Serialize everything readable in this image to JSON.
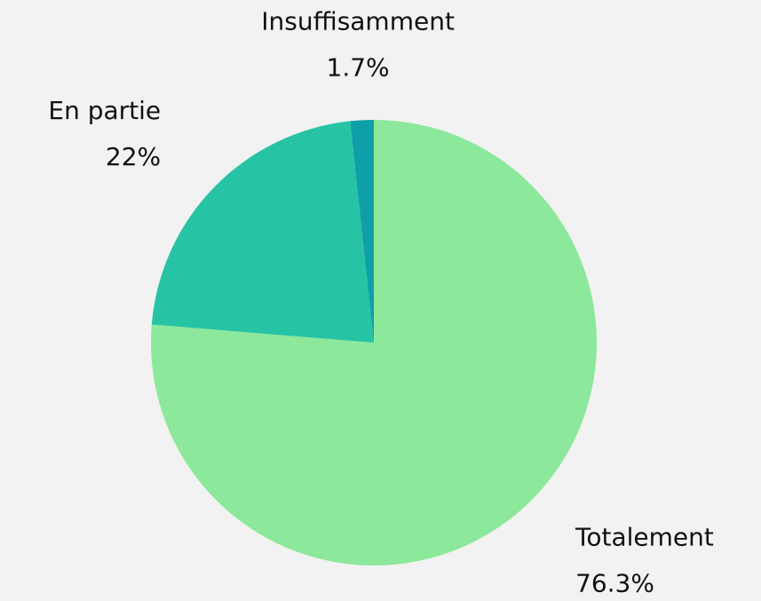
{
  "chart_data": {
    "type": "pie",
    "categories": [
      "Totalement",
      "En partie",
      "Insuffisamment"
    ],
    "values": [
      76.3,
      22,
      1.7
    ],
    "value_labels": [
      "76.3%",
      "22%",
      "1.7%"
    ],
    "colors": [
      "#8ce89a",
      "#26c4a4",
      "#0e9fa8"
    ]
  }
}
